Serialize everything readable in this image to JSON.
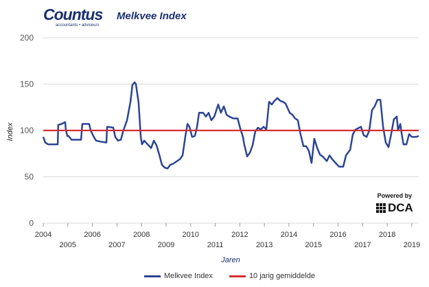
{
  "header": {
    "logo_text": "Countus",
    "logo_sub": "accountants • adviseurs",
    "title": "Melkvee Index"
  },
  "powered": {
    "label": "Powered by",
    "brand": "DCA"
  },
  "chart_data": {
    "type": "line",
    "title": "Melkvee Index",
    "xlabel": "Jaren",
    "ylabel": "Index",
    "ylim": [
      0,
      200
    ],
    "xlim": [
      2004,
      2019.28
    ],
    "yticks": [
      0,
      50,
      100,
      150,
      200
    ],
    "xticks_top": [
      "2004",
      "2006",
      "2008",
      "2010",
      "2012",
      "2014",
      "2016",
      "2018"
    ],
    "xticks_bottom": [
      "2005",
      "2007",
      "2009",
      "2011",
      "2013",
      "2015",
      "2017",
      "2019"
    ],
    "grid": true,
    "legend_placement": "bottom",
    "series": [
      {
        "name": "Melkvee Index",
        "color": "#2b4494",
        "x": [
          2004.0,
          2004.08,
          2004.2,
          2004.47,
          2004.59,
          2004.61,
          2004.75,
          2004.89,
          2004.92,
          2004.98,
          2005.03,
          2005.15,
          2005.31,
          2005.54,
          2005.59,
          2005.87,
          2005.93,
          2006.04,
          2006.15,
          2006.32,
          2006.57,
          2006.6,
          2006.85,
          2006.93,
          2007.04,
          2007.16,
          2007.26,
          2007.41,
          2007.55,
          2007.63,
          2007.72,
          2007.77,
          2007.88,
          2007.97,
          2008.02,
          2008.11,
          2008.25,
          2008.39,
          2008.5,
          2008.61,
          2008.72,
          2008.83,
          2008.94,
          2009.06,
          2009.17,
          2009.28,
          2009.39,
          2009.56,
          2009.67,
          2009.78,
          2009.87,
          2009.95,
          2010.06,
          2010.17,
          2010.26,
          2010.34,
          2010.51,
          2010.62,
          2010.73,
          2010.84,
          2010.96,
          2011.12,
          2011.23,
          2011.35,
          2011.46,
          2011.57,
          2011.74,
          2011.91,
          2012.02,
          2012.13,
          2012.18,
          2012.3,
          2012.41,
          2012.52,
          2012.63,
          2012.74,
          2012.85,
          2012.97,
          2013.08,
          2013.19,
          2013.3,
          2013.41,
          2013.53,
          2013.64,
          2013.75,
          2013.86,
          2014.03,
          2014.14,
          2014.25,
          2014.36,
          2014.47,
          2014.59,
          2014.7,
          2014.81,
          2014.92,
          2015.03,
          2015.15,
          2015.26,
          2015.37,
          2015.54,
          2015.65,
          2015.76,
          2015.93,
          2016.04,
          2016.21,
          2016.32,
          2016.49,
          2016.6,
          2016.71,
          2016.93,
          2017.04,
          2017.16,
          2017.27,
          2017.38,
          2017.49,
          2017.6,
          2017.72,
          2017.83,
          2017.94,
          2018.05,
          2018.16,
          2018.27,
          2018.39,
          2018.44,
          2018.53,
          2018.58,
          2018.66,
          2018.78,
          2018.89,
          2019.0,
          2019.17,
          2019.28
        ],
        "values": [
          93,
          87,
          85,
          85,
          85,
          106,
          107,
          109,
          101,
          94,
          94,
          90,
          90,
          90,
          107,
          107,
          100,
          94,
          89,
          88,
          87,
          104,
          103,
          93,
          89,
          90,
          100,
          111,
          131,
          149,
          152,
          150,
          130,
          93,
          85,
          89,
          85,
          81,
          89,
          84,
          74,
          63,
          60,
          59,
          63,
          64,
          66,
          69,
          73,
          93,
          107,
          104,
          93,
          94,
          104,
          119,
          119,
          115,
          119,
          111,
          115,
          128,
          119,
          126,
          117,
          115,
          113,
          113,
          102,
          93,
          85,
          72,
          76,
          84,
          99,
          103,
          101,
          104,
          101,
          131,
          128,
          132,
          135,
          132,
          131,
          129,
          119,
          117,
          113,
          111,
          96,
          83,
          83,
          78,
          65,
          91,
          81,
          74,
          72,
          67,
          73,
          69,
          64,
          61,
          61,
          73,
          79,
          96,
          101,
          104,
          95,
          93,
          100,
          122,
          126,
          133,
          133,
          104,
          87,
          82,
          96,
          112,
          115,
          100,
          107,
          98,
          85,
          85,
          96,
          93,
          93,
          94
        ]
      },
      {
        "name": "10 jarig gemiddelde",
        "color": "#d42f2f",
        "x": [
          2004,
          2019.28
        ],
        "values": [
          100,
          100
        ]
      }
    ]
  }
}
